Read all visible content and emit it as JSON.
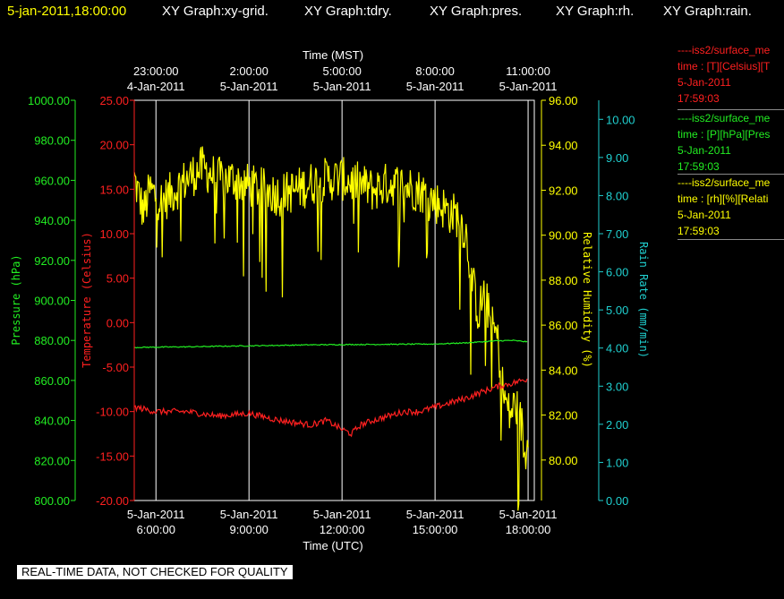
{
  "header": {
    "timestamp": "5-jan-2011,18:00:00",
    "graphs": [
      "XY Graph:xy-grid.",
      "XY Graph:tdry.",
      "XY Graph:pres.",
      "XY Graph:rh.",
      "XY Graph:rain."
    ]
  },
  "legend": [
    {
      "source": "----iss2/surface_me",
      "fields": "time : [T][Celsius][T",
      "date": "5-Jan-2011",
      "time": "17:59:03",
      "color": "#ff2020"
    },
    {
      "source": "----iss2/surface_me",
      "fields": "time : [P][hPa][Pres",
      "date": "5-Jan-2011",
      "time": "17:59:03",
      "color": "#22ee22"
    },
    {
      "source": "----iss2/surface_me",
      "fields": "time : [rh][%][Relati",
      "date": "5-Jan-2011",
      "time": "17:59:03",
      "color": "#ffff00"
    }
  ],
  "footer": {
    "qc_notice": "REAL-TIME DATA, NOT CHECKED FOR QUALITY"
  },
  "chart_data": {
    "type": "line",
    "grid": "vertical",
    "x_bottom": {
      "label": "Time (UTC)",
      "range_hours": [
        5.3,
        18.2
      ],
      "ticks": [
        {
          "h": 6,
          "date": "5-Jan-2011",
          "time": "6:00:00"
        },
        {
          "h": 9,
          "date": "5-Jan-2011",
          "time": "9:00:00"
        },
        {
          "h": 12,
          "date": "5-Jan-2011",
          "time": "12:00:00"
        },
        {
          "h": 15,
          "date": "5-Jan-2011",
          "time": "15:00:00"
        },
        {
          "h": 18,
          "date": "5-Jan-2011",
          "time": "18:00:00"
        }
      ]
    },
    "x_top": {
      "label": "Time (MST)",
      "ticks": [
        {
          "h": 6,
          "time": "23:00:00",
          "date": "4-Jan-2011"
        },
        {
          "h": 9,
          "time": "2:00:00",
          "date": "5-Jan-2011"
        },
        {
          "h": 12,
          "time": "5:00:00",
          "date": "5-Jan-2011"
        },
        {
          "h": 15,
          "time": "8:00:00",
          "date": "5-Jan-2011"
        },
        {
          "h": 18,
          "time": "11:00:00",
          "date": "5-Jan-2011"
        }
      ]
    },
    "axes": {
      "pressure": {
        "label": "Pressure (hPa)",
        "color": "#22ee22",
        "range": [
          800,
          1000
        ],
        "ticks": [
          "800.00",
          "820.00",
          "840.00",
          "860.00",
          "880.00",
          "900.00",
          "920.00",
          "940.00",
          "960.00",
          "980.00",
          "1000.00"
        ]
      },
      "temperature": {
        "label": "Temperature (Celsius)",
        "color": "#ff2020",
        "range": [
          -20,
          25
        ],
        "ticks": [
          "-20.00",
          "-15.00",
          "-10.00",
          "-5.00",
          "0.00",
          "5.00",
          "10.00",
          "15.00",
          "20.00",
          "25.00"
        ]
      },
      "rh": {
        "label": "Relative Humidity (%)",
        "color": "#ffff00",
        "range": [
          78.2,
          96
        ],
        "ticks": [
          "80.00",
          "82.00",
          "84.00",
          "86.00",
          "88.00",
          "90.00",
          "92.00",
          "94.00",
          "96.00"
        ]
      },
      "rain": {
        "label": "Rain Rate (mm/min)",
        "color": "#20d0d0",
        "range": [
          0,
          10.5
        ],
        "ticks": [
          "0.00",
          "1.00",
          "2.00",
          "3.00",
          "4.00",
          "5.00",
          "6.00",
          "7.00",
          "8.00",
          "9.00",
          "10.00"
        ]
      }
    },
    "series": [
      {
        "name": "rh",
        "axis": "rh",
        "noise": 1.0,
        "x": [
          5.3,
          5.6,
          5.8,
          6.2,
          6.6,
          7.0,
          7.5,
          8.0,
          8.5,
          9.0,
          9.5,
          10.0,
          10.5,
          11.0,
          11.5,
          12.0,
          12.5,
          13.0,
          13.5,
          14.0,
          14.5,
          15.0,
          15.5,
          15.8,
          16.0,
          16.2,
          16.4,
          16.6,
          16.8,
          17.0,
          17.2,
          17.4,
          17.6,
          17.8,
          17.9,
          18.0
        ],
        "y": [
          92.5,
          91.0,
          92.0,
          91.5,
          92.0,
          92.5,
          93.0,
          92.5,
          92.5,
          92.2,
          92.0,
          91.8,
          92.0,
          92.3,
          92.5,
          92.5,
          92.3,
          92.0,
          92.3,
          92.2,
          92.0,
          91.5,
          91.0,
          90.8,
          90.0,
          88.0,
          86.5,
          87.5,
          86.0,
          85.5,
          83.0,
          82.0,
          82.5,
          81.5,
          80.0,
          81.5
        ]
      },
      {
        "name": "pressure",
        "axis": "pressure",
        "noise": 0.25,
        "x": [
          5.3,
          7.0,
          9.0,
          11.0,
          13.0,
          15.0,
          16.0,
          17.0,
          17.5,
          18.0
        ],
        "y": [
          876.5,
          876.8,
          877.3,
          877.8,
          878.0,
          878.2,
          878.8,
          879.8,
          880.0,
          879.3
        ]
      },
      {
        "name": "temperature",
        "axis": "temperature",
        "noise": 0.35,
        "x": [
          5.3,
          6.0,
          7.0,
          8.0,
          9.0,
          10.0,
          11.0,
          11.5,
          12.0,
          12.3,
          12.6,
          13.0,
          13.5,
          14.0,
          14.5,
          15.0,
          15.5,
          16.0,
          16.5,
          17.0,
          17.5,
          18.0
        ],
        "y": [
          -9.5,
          -10.0,
          -10.0,
          -10.5,
          -10.2,
          -11.0,
          -11.5,
          -11.0,
          -12.0,
          -12.5,
          -11.5,
          -11.0,
          -10.5,
          -10.0,
          -10.0,
          -9.5,
          -9.0,
          -8.5,
          -7.8,
          -7.2,
          -6.8,
          -6.3
        ]
      }
    ]
  }
}
